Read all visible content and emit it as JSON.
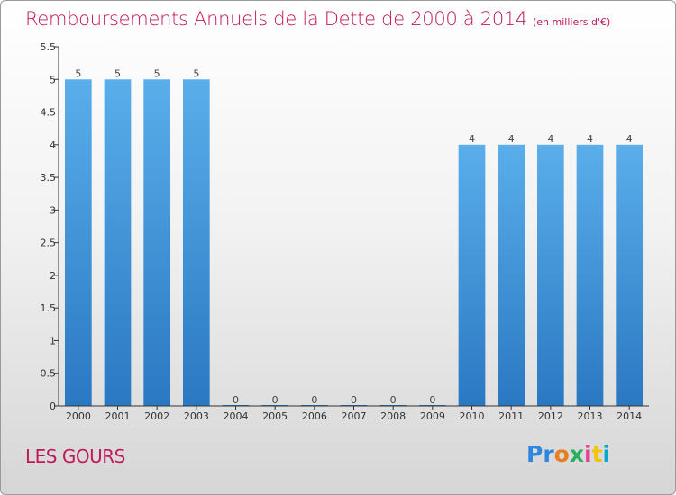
{
  "title": "Remboursements Annuels de la Dette de 2000 à 2014",
  "unit_note": "(en milliers d'€)",
  "place": "LES GOURS",
  "logo": {
    "parts": [
      "Pr",
      "o",
      "x",
      "i",
      "t",
      "i"
    ]
  },
  "colors": {
    "bar": "#3d8fd6",
    "title": "#c2185b",
    "axis": "#333333"
  },
  "chart_data": {
    "type": "bar",
    "categories": [
      "2000",
      "2001",
      "2002",
      "2003",
      "2004",
      "2005",
      "2006",
      "2007",
      "2008",
      "2009",
      "2010",
      "2011",
      "2012",
      "2013",
      "2014"
    ],
    "values": [
      5,
      5,
      5,
      5,
      0,
      0,
      0,
      0,
      0,
      0,
      4,
      4,
      4,
      4,
      4
    ],
    "ylim": [
      0,
      5.5
    ],
    "yticks": [
      "0",
      "0.5",
      "1",
      "1.5",
      "2",
      "2.5",
      "3",
      "3.5",
      "4",
      "4.5",
      "5",
      "5.5"
    ],
    "ytick_values": [
      0,
      0.5,
      1,
      1.5,
      2,
      2.5,
      3,
      3.5,
      4,
      4.5,
      5,
      5.5
    ],
    "data_labels": [
      "5",
      "5",
      "5",
      "5",
      "0",
      "0",
      "0",
      "0",
      "0",
      "0",
      "4",
      "4",
      "4",
      "4",
      "4"
    ],
    "grid": false
  }
}
